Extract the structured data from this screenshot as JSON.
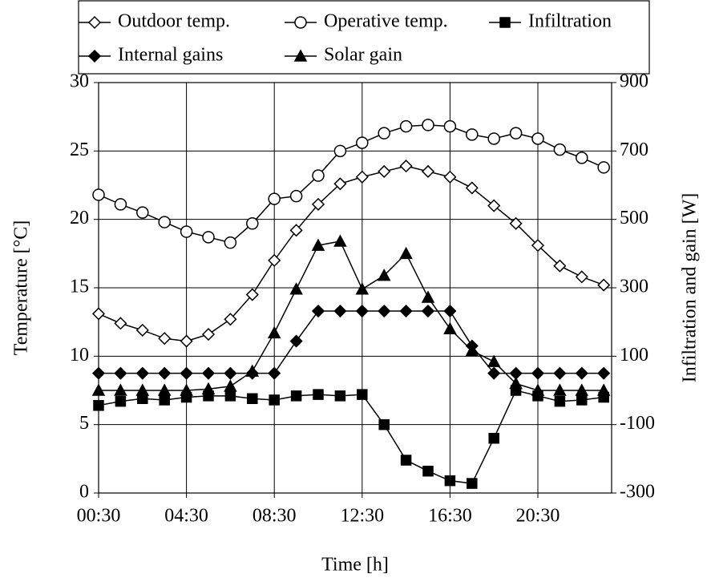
{
  "chart_data": {
    "type": "line",
    "xlabel": "Time [h]",
    "ylabel": "Temperature [°C]",
    "y2label": "Infiltration and gain [W]",
    "categories": [
      "00:30",
      null,
      null,
      null,
      "04:30",
      null,
      null,
      null,
      "08:30",
      null,
      null,
      null,
      "12:30",
      null,
      null,
      null,
      "16:30",
      null,
      null,
      null,
      "20:30",
      null,
      null,
      null
    ],
    "ylim": [
      0,
      30
    ],
    "yticks": [
      0,
      5,
      10,
      15,
      20,
      25,
      30
    ],
    "y2lim": [
      -300,
      900
    ],
    "y2ticks": [
      -300,
      -100,
      100,
      300,
      500,
      700,
      900
    ],
    "grid": true,
    "series": [
      {
        "name": "Outdoor temp.",
        "color": "#000000",
        "marker": "diamond-open",
        "values": [
          13.1,
          12.4,
          11.9,
          11.3,
          11.1,
          11.6,
          12.7,
          14.5,
          17.0,
          19.2,
          21.1,
          22.6,
          23.1,
          23.5,
          23.9,
          23.5,
          23.1,
          22.3,
          21.0,
          19.7,
          18.1,
          16.6,
          15.8,
          15.2
        ]
      },
      {
        "name": "Operative temp.",
        "color": "#000000",
        "marker": "circle-open",
        "values": [
          21.8,
          21.1,
          20.5,
          19.8,
          19.1,
          18.7,
          18.3,
          19.7,
          21.5,
          21.7,
          23.2,
          25.0,
          25.6,
          26.3,
          26.8,
          26.9,
          26.8,
          26.2,
          25.9,
          26.3,
          25.9,
          25.1,
          24.5,
          23.8
        ]
      },
      {
        "name": "Infiltration",
        "color": "#000000",
        "marker": "square",
        "axis": "y2",
        "values": [
          -44,
          -32,
          -24,
          -28,
          -20,
          -16,
          -16,
          -24,
          -28,
          -16,
          -12,
          -16,
          -12,
          -100,
          -204,
          -236,
          -264,
          -272,
          -140,
          0,
          -16,
          -32,
          -28,
          -20
        ]
      },
      {
        "name": "Internal gains",
        "color": "#000000",
        "marker": "diamond",
        "axis": "y2",
        "values": [
          50,
          50,
          50,
          50,
          50,
          50,
          50,
          50,
          50,
          144,
          232,
          232,
          232,
          232,
          232,
          232,
          232,
          130,
          50,
          50,
          50,
          50,
          50,
          50
        ]
      },
      {
        "name": "Solar gain",
        "color": "#000000",
        "marker": "triangle",
        "axis": "y2",
        "values": [
          0,
          0,
          0,
          0,
          0,
          4,
          12,
          56,
          168,
          296,
          424,
          436,
          296,
          336,
          400,
          272,
          180,
          116,
          84,
          20,
          0,
          0,
          0,
          0
        ]
      }
    ]
  }
}
